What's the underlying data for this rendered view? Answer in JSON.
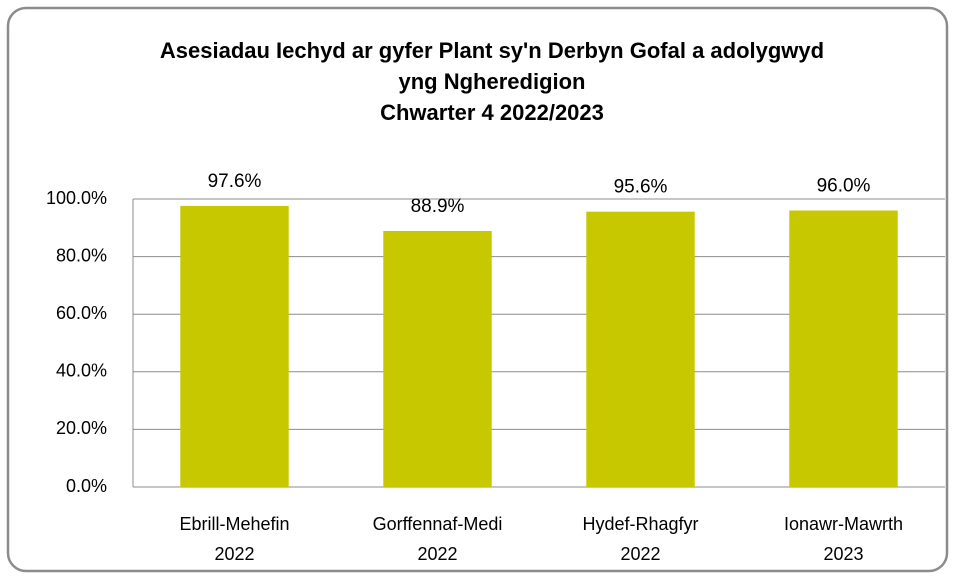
{
  "chart_data": {
    "type": "bar",
    "title": [
      "Asesiadau Iechyd ar gyfer Plant sy'n Derbyn Gofal a adolygwyd",
      "yng Ngheredigion",
      "Chwarter 4  2022/2023"
    ],
    "categories": [
      "Ebrill-Mehefin\n2022",
      "Gorffennaf-Medi\n2022",
      "Hydef-Rhagfyr\n2022",
      "Ionawr-Mawrth\n2023"
    ],
    "values": [
      97.6,
      88.9,
      95.6,
      96.0
    ],
    "value_labels": [
      "97.6%",
      "88.9%",
      "95.6%",
      "96.0%"
    ],
    "color": "#c8c800",
    "ylim": [
      0,
      100
    ],
    "yticks": [
      {
        "value": 0,
        "label": "0.0%"
      },
      {
        "value": 20,
        "label": "20.0%"
      },
      {
        "value": 40,
        "label": "40.0%"
      },
      {
        "value": 60,
        "label": "60.0%"
      },
      {
        "value": 80,
        "label": "80.0%"
      },
      {
        "value": 100,
        "label": "100.0%"
      }
    ],
    "grid": true
  }
}
